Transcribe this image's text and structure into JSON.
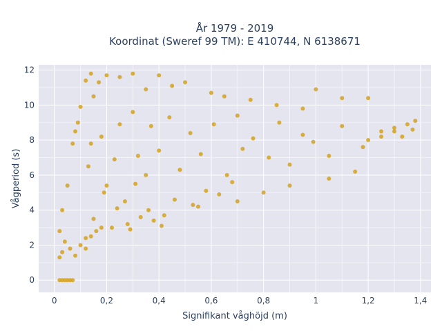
{
  "chart_data": {
    "type": "scatter",
    "title_lines": [
      "År 1979 - 2019",
      "Koordinat (Sweref 99 TM): E 410744, N 6138671"
    ],
    "xlabel": "Signifikant våghöjd (m)",
    "ylabel": "Vågperiod (s)",
    "xlim": [
      -0.06,
      1.44
    ],
    "ylim": [
      -0.7,
      12.3
    ],
    "x_ticks": [
      0,
      0.2,
      0.4,
      0.6,
      0.8,
      1,
      1.2,
      1.4
    ],
    "x_tick_labels": [
      "0",
      "0,2",
      "0,4",
      "0,6",
      "0,8",
      "1",
      "1,2",
      "1,4"
    ],
    "y_ticks": [
      0,
      2,
      4,
      6,
      8,
      10,
      12
    ],
    "y_tick_labels": [
      "0",
      "2",
      "4",
      "6",
      "8",
      "10",
      "12"
    ],
    "grid": true,
    "marker_color": "#d4a21f",
    "background_color": "#e5e5f0",
    "series": [
      {
        "x": [
          0.02,
          0.03,
          0.04,
          0.05,
          0.06,
          0.07,
          0.02,
          0.02,
          0.03,
          0.03,
          0.04,
          0.05,
          0.06,
          0.07,
          0.08,
          0.08,
          0.09,
          0.1,
          0.1,
          0.12,
          0.12,
          0.14,
          0.14,
          0.15,
          0.16,
          0.17,
          0.18,
          0.2,
          0.22,
          0.25,
          0.28,
          0.3,
          0.33,
          0.35,
          0.38,
          0.4,
          0.42,
          0.45,
          0.5,
          0.55,
          0.6,
          0.65,
          0.7,
          0.75,
          0.8,
          0.85,
          0.9,
          0.95,
          1.0,
          1.05,
          1.1,
          1.15,
          1.2,
          1.25,
          1.3,
          1.35,
          1.38,
          0.13,
          0.14,
          0.18,
          0.2,
          0.23,
          0.25,
          0.27,
          0.3,
          0.32,
          0.35,
          0.37,
          0.4,
          0.44,
          0.48,
          0.52,
          0.56,
          0.61,
          0.66,
          0.7,
          0.72,
          0.76,
          0.82,
          0.86,
          0.9,
          0.95,
          0.99,
          1.05,
          1.1,
          1.18,
          1.2,
          1.25,
          1.3,
          1.33,
          1.37,
          0.12,
          0.15,
          0.19,
          0.24,
          0.29,
          0.31,
          0.36,
          0.41,
          0.46,
          0.53,
          0.58,
          0.63,
          0.68
        ],
        "y": [
          0,
          0,
          0,
          0,
          0,
          0,
          1.3,
          2.8,
          1.6,
          4.0,
          2.2,
          5.4,
          1.8,
          7.8,
          8.5,
          1.4,
          9.0,
          2.0,
          9.9,
          2.4,
          11.4,
          2.5,
          11.8,
          10.5,
          2.8,
          11.3,
          3.0,
          11.7,
          3.0,
          11.6,
          3.2,
          11.8,
          3.6,
          10.9,
          3.4,
          11.7,
          3.7,
          11.1,
          11.3,
          4.2,
          10.7,
          10.5,
          4.5,
          10.3,
          5.0,
          10.0,
          5.4,
          9.8,
          10.9,
          5.8,
          10.4,
          6.2,
          10.4,
          8.2,
          8.5,
          8.9,
          9.1,
          6.5,
          7.8,
          8.2,
          5.4,
          6.9,
          8.9,
          4.5,
          9.6,
          7.1,
          6.0,
          8.8,
          7.4,
          9.3,
          6.3,
          8.4,
          7.2,
          8.9,
          6.0,
          9.4,
          7.5,
          8.1,
          7.0,
          9.0,
          6.6,
          8.3,
          7.9,
          7.1,
          8.8,
          7.6,
          8.0,
          8.5,
          8.7,
          8.2,
          8.6,
          1.8,
          3.5,
          5.0,
          4.1,
          2.9,
          5.5,
          4.0,
          3.1,
          4.6,
          4.3,
          5.1,
          4.9,
          5.6
        ]
      }
    ]
  }
}
